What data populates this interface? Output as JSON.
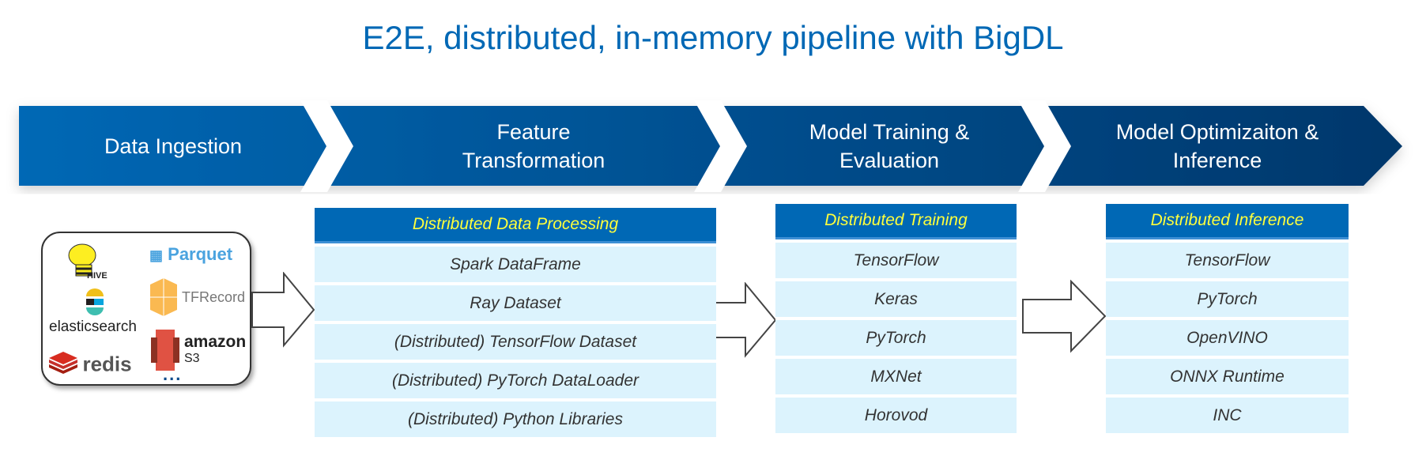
{
  "title": "E2E, distributed, in-memory pipeline with BigDL",
  "stages": [
    {
      "label": "Data Ingestion"
    },
    {
      "label": "Feature Transformation"
    },
    {
      "label": "Model Training & Evaluation"
    },
    {
      "label": "Model Optimizaiton & Inference"
    }
  ],
  "colors": {
    "title": "#0068b5",
    "banner_start": "#0068b5",
    "banner_end": "#00376b",
    "table_header": "#0068b5",
    "table_header_text": "#ffff3c",
    "table_row": "#dcf3fd"
  },
  "sources": {
    "logos": [
      "HIVE",
      "Parquet",
      "elasticsearch",
      "TFRecord",
      "redis",
      "amazon",
      "S3"
    ],
    "more": "..."
  },
  "tables": [
    {
      "header": "Distributed Data Processing",
      "rows": [
        "Spark DataFrame",
        "Ray Dataset",
        "(Distributed) TensorFlow Dataset",
        "(Distributed) PyTorch DataLoader",
        "(Distributed) Python Libraries"
      ]
    },
    {
      "header": "Distributed Training",
      "rows": [
        "TensorFlow",
        "Keras",
        "PyTorch",
        "MXNet",
        "Horovod"
      ]
    },
    {
      "header": "Distributed Inference",
      "rows": [
        "TensorFlow",
        "PyTorch",
        "OpenVINO",
        "ONNX Runtime",
        "INC"
      ]
    }
  ]
}
